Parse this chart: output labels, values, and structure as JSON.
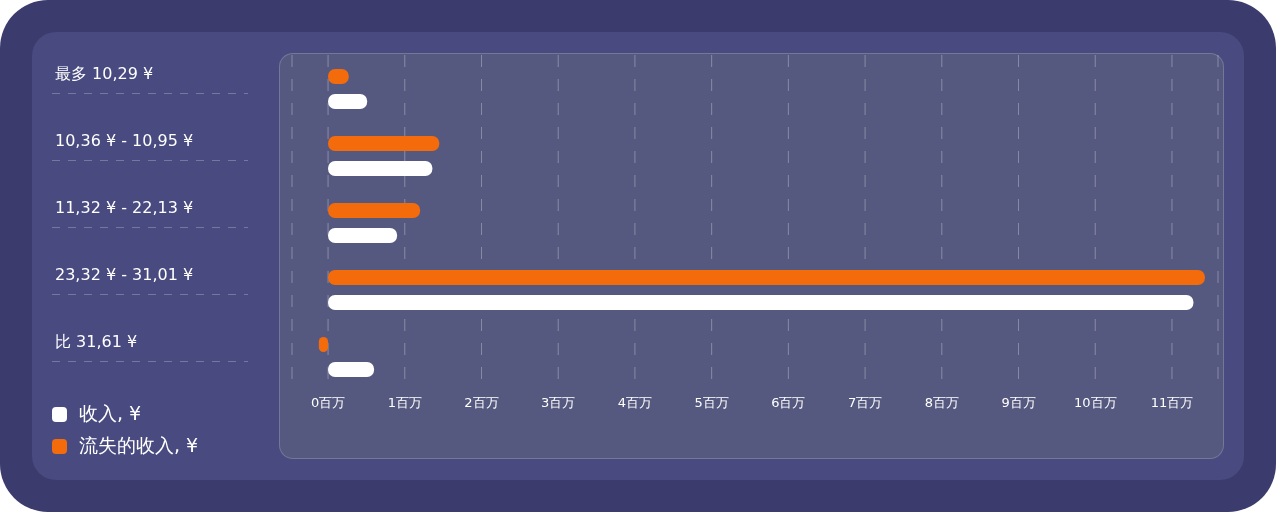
{
  "chart_data": {
    "type": "bar",
    "orientation": "horizontal",
    "categories": [
      "最多 10,29 ¥",
      "10,36 ¥ - 10,95 ¥",
      "11,32 ¥ - 22,13 ¥",
      "23,32 ¥ - 31,01 ¥",
      "比 31,61 ¥"
    ],
    "series": [
      {
        "name": "收入, ¥",
        "color": "#ffffff",
        "values": [
          0.51,
          1.36,
          0.9,
          11.28,
          0.6
        ]
      },
      {
        "name": "流失的收入, ¥",
        "color": "#f46b0c",
        "values": [
          0.27,
          1.45,
          1.2,
          11.43,
          -0.12
        ]
      }
    ],
    "xlim": [
      -0.47,
      11.6
    ],
    "xticks": [
      {
        "value": 0,
        "label": "0百万"
      },
      {
        "value": 1,
        "label": "1百万"
      },
      {
        "value": 2,
        "label": "2百万"
      },
      {
        "value": 3,
        "label": "3百万"
      },
      {
        "value": 4,
        "label": "4百万"
      },
      {
        "value": 5,
        "label": "5百万"
      },
      {
        "value": 6,
        "label": "6百万"
      },
      {
        "value": 7,
        "label": "7百万"
      },
      {
        "value": 8,
        "label": "8百万"
      },
      {
        "value": 9,
        "label": "9百万"
      },
      {
        "value": 10,
        "label": "10百万"
      },
      {
        "value": 11,
        "label": "11百万"
      }
    ],
    "grid": "x",
    "legend": "bottom left"
  }
}
